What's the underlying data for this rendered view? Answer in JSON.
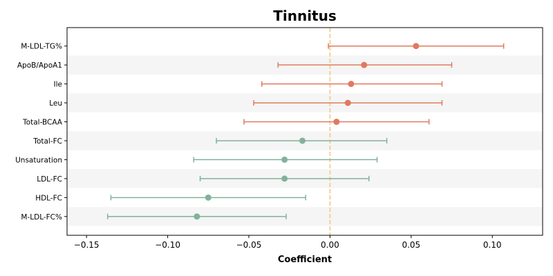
{
  "chart_data": {
    "type": "forest",
    "title": "Tinnitus",
    "xlabel": "Coefficient",
    "xlim": [
      -0.162,
      0.131
    ],
    "xticks": [
      -0.15,
      -0.1,
      -0.05,
      0.0,
      0.05,
      0.1
    ],
    "xtick_labels": [
      "−0.15",
      "−0.10",
      "−0.05",
      "0.00",
      "0.05",
      "0.10"
    ],
    "reference_line": 0.0,
    "colors": {
      "positive": "#e07a5f",
      "negative": "#81b29a",
      "reference": "#f2cc8f",
      "band": "#f5f5f5"
    },
    "rows": [
      {
        "label": "M-LDL-TG%",
        "estimate": 0.053,
        "lower": -0.001,
        "upper": 0.107
      },
      {
        "label": "ApoB/ApoA1",
        "estimate": 0.021,
        "lower": -0.032,
        "upper": 0.075
      },
      {
        "label": "Ile",
        "estimate": 0.013,
        "lower": -0.042,
        "upper": 0.069
      },
      {
        "label": "Leu",
        "estimate": 0.011,
        "lower": -0.047,
        "upper": 0.069
      },
      {
        "label": "Total-BCAA",
        "estimate": 0.004,
        "lower": -0.053,
        "upper": 0.061
      },
      {
        "label": "Total-FC",
        "estimate": -0.017,
        "lower": -0.07,
        "upper": 0.035
      },
      {
        "label": "Unsaturation",
        "estimate": -0.028,
        "lower": -0.084,
        "upper": 0.029
      },
      {
        "label": "LDL-FC",
        "estimate": -0.028,
        "lower": -0.08,
        "upper": 0.024
      },
      {
        "label": "HDL-FC",
        "estimate": -0.075,
        "lower": -0.135,
        "upper": -0.015
      },
      {
        "label": "M-LDL-FC%",
        "estimate": -0.082,
        "lower": -0.137,
        "upper": -0.027
      }
    ]
  }
}
